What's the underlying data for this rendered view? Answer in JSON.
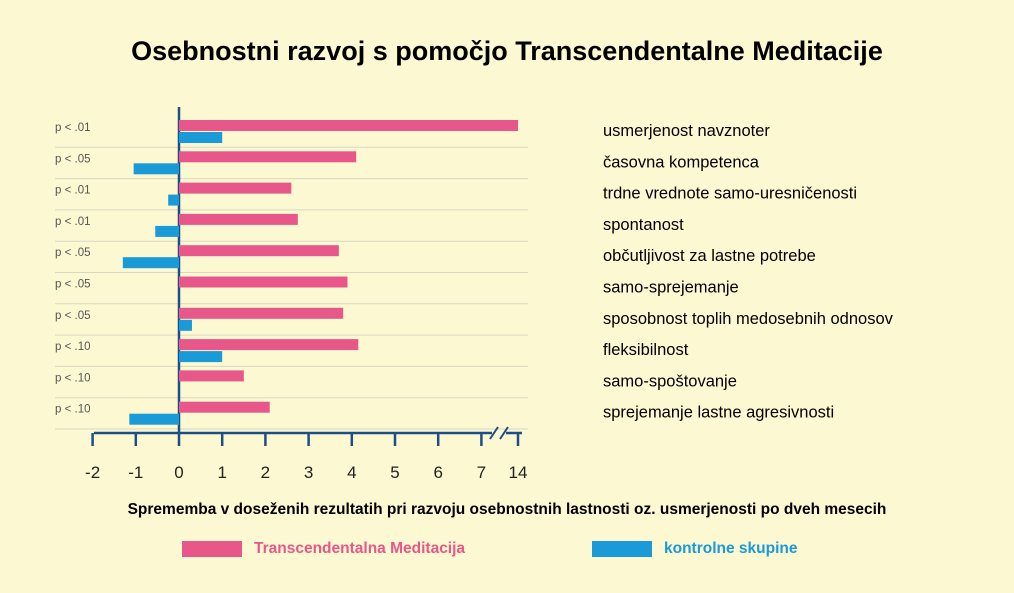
{
  "chart_data": {
    "type": "bar",
    "orientation": "horizontal",
    "title": "Osebnostni razvoj s pomočjo Transcendentalne Meditacije",
    "xlabel": "Sprememba v doseženih rezultatih pri razvoju osebnostnih lastnosti oz. usmerjenosti po dveh mesecih",
    "ylabel": "",
    "xlim": [
      -2,
      14
    ],
    "x_ticks": [
      "-2",
      "-1",
      "0",
      "1",
      "2",
      "3",
      "4",
      "5",
      "6",
      "7",
      "14"
    ],
    "axis_break": "between 7 and 14",
    "categories": [
      "usmerjenost navznoter",
      "časovna kompetenca",
      "trdne vrednote samo-uresničenosti",
      "spontanost",
      "občutljivost za lastne potrebe",
      "samo-sprejemanje",
      "sposobnost toplih medosebnih odnosov",
      "fleksibilnost",
      "samo-spoštovanje",
      "sprejemanje lastne agresivnosti"
    ],
    "significance": [
      "p < .01",
      "p < .05",
      "p < .01",
      "p < .01",
      "p < .05",
      "p < .05",
      "p < .05",
      "p < .10",
      "p < .10",
      "p < .10"
    ],
    "series": [
      {
        "name": "Transcendentalna Meditacija",
        "color": "#e8578a",
        "values": [
          14,
          4.1,
          2.6,
          2.75,
          3.7,
          3.9,
          3.8,
          4.15,
          1.5,
          2.1
        ]
      },
      {
        "name": "kontrolne skupine",
        "color": "#1a9ad6",
        "values": [
          1.0,
          -1.05,
          -0.25,
          -0.55,
          -1.3,
          0,
          0.3,
          1.0,
          0,
          -1.15
        ]
      }
    ],
    "legend_position": "bottom",
    "grid": "horizontal"
  },
  "colors": {
    "axis": "#1e4e88",
    "grid": "#d8d8c0",
    "background": "#fbf8d2",
    "tm_text": "#e8578a",
    "control_text": "#1a9ad6"
  }
}
